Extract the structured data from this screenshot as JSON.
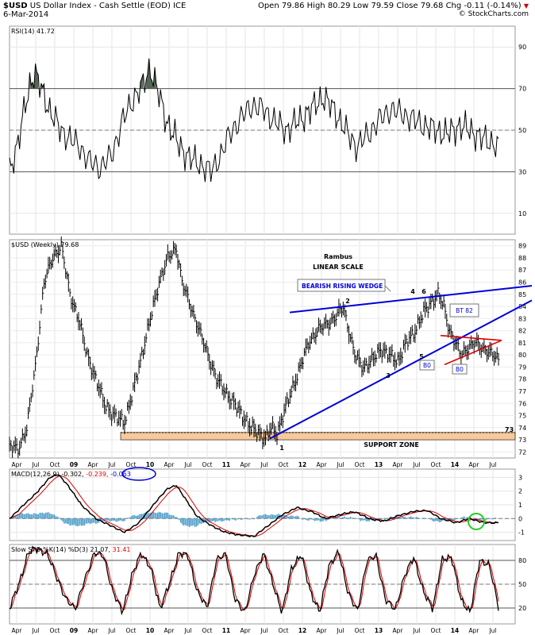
{
  "header": {
    "symbol": "$USD",
    "name": "US Dollar Index - Cash Settle (EOD)",
    "exchange": "ICE",
    "date": "6-Mar-2014",
    "open": "Open 79.86",
    "high": "High 80.29",
    "low": "Low 79.59",
    "close": "Close 79.68",
    "chg": "Chg -0.11 (-0.14%)",
    "copyright": "© StockCharts.com"
  },
  "x_axis_labels": [
    "Apr",
    "Jul",
    "Oct",
    "09",
    "Apr",
    "Jul",
    "Oct",
    "10",
    "Apr",
    "Jul",
    "Oct",
    "11",
    "Apr",
    "Jul",
    "Oct",
    "12",
    "Apr",
    "Jul",
    "Oct",
    "13",
    "Apr",
    "Jul",
    "Oct",
    "14",
    "Apr",
    "Jul"
  ],
  "colors": {
    "price": "#000000",
    "wedge": "#0000dd",
    "triangle": "#dd0000",
    "support_fill": "#f8c99a",
    "macd_signal": "#dd0000",
    "histogram": "#4a9cc8",
    "circle_green": "#22cc22",
    "circle_blue": "#0000cc",
    "rsi_extreme_fill": "#556655"
  },
  "chart_data": [
    {
      "type": "line",
      "panel": "rsi",
      "legend": "RSI(14) 41.72",
      "ylim": [
        0,
        100
      ],
      "yticks": [
        10,
        30,
        50,
        70,
        90
      ],
      "reference_lines": [
        30,
        50,
        70
      ],
      "keypoints": [
        [
          0,
          30
        ],
        [
          4,
          38
        ],
        [
          8,
          45
        ],
        [
          14,
          62
        ],
        [
          18,
          72
        ],
        [
          22,
          78
        ],
        [
          28,
          70
        ],
        [
          35,
          60
        ],
        [
          45,
          50
        ],
        [
          55,
          45
        ],
        [
          62,
          42
        ],
        [
          70,
          35
        ],
        [
          80,
          32
        ],
        [
          90,
          38
        ],
        [
          100,
          55
        ],
        [
          110,
          66
        ],
        [
          118,
          72
        ],
        [
          124,
          80
        ],
        [
          130,
          70
        ],
        [
          138,
          55
        ],
        [
          150,
          42
        ],
        [
          160,
          36
        ],
        [
          170,
          33
        ],
        [
          178,
          30
        ],
        [
          186,
          38
        ],
        [
          194,
          48
        ],
        [
          204,
          56
        ],
        [
          214,
          62
        ],
        [
          224,
          60
        ],
        [
          234,
          54
        ],
        [
          244,
          50
        ],
        [
          256,
          55
        ],
        [
          266,
          60
        ],
        [
          276,
          66
        ],
        [
          286,
          60
        ],
        [
          296,
          50
        ],
        [
          306,
          42
        ],
        [
          316,
          48
        ],
        [
          326,
          55
        ],
        [
          336,
          60
        ],
        [
          346,
          58
        ],
        [
          356,
          55
        ],
        [
          366,
          52
        ],
        [
          376,
          50
        ],
        [
          386,
          48
        ],
        [
          396,
          52
        ],
        [
          406,
          50
        ],
        [
          416,
          46
        ],
        [
          426,
          44
        ],
        [
          431,
          41.72
        ]
      ]
    },
    {
      "type": "line",
      "panel": "price",
      "legend": "$USD (Weekly) 79.68",
      "ylim": [
        71.5,
        89.5
      ],
      "yticks": [
        72,
        73,
        74,
        75,
        76,
        77,
        78,
        79,
        80,
        81,
        82,
        83,
        84,
        85,
        86,
        87,
        88,
        89
      ],
      "keypoints": [
        [
          0,
          72.5
        ],
        [
          6,
          72.2
        ],
        [
          12,
          74
        ],
        [
          18,
          79
        ],
        [
          24,
          86
        ],
        [
          30,
          88
        ],
        [
          36,
          89
        ],
        [
          42,
          85
        ],
        [
          48,
          83
        ],
        [
          54,
          80
        ],
        [
          60,
          78
        ],
        [
          66,
          76
        ],
        [
          72,
          75
        ],
        [
          80,
          74.5
        ],
        [
          86,
          77
        ],
        [
          92,
          80
        ],
        [
          98,
          83
        ],
        [
          104,
          86
        ],
        [
          110,
          88
        ],
        [
          116,
          88.8
        ],
        [
          120,
          86
        ],
        [
          126,
          84
        ],
        [
          132,
          82
        ],
        [
          138,
          80
        ],
        [
          144,
          78
        ],
        [
          150,
          77
        ],
        [
          156,
          76
        ],
        [
          162,
          75
        ],
        [
          168,
          74
        ],
        [
          174,
          73.5
        ],
        [
          178,
          73.1
        ],
        [
          182,
          74
        ],
        [
          186,
          73.5
        ],
        [
          190,
          75
        ],
        [
          196,
          77
        ],
        [
          202,
          79
        ],
        [
          208,
          81
        ],
        [
          214,
          82
        ],
        [
          220,
          82.5
        ],
        [
          226,
          83
        ],
        [
          232,
          84
        ],
        [
          236,
          82
        ],
        [
          240,
          80
        ],
        [
          246,
          79
        ],
        [
          252,
          79.5
        ],
        [
          258,
          80.5
        ],
        [
          264,
          80
        ],
        [
          270,
          79.5
        ],
        [
          276,
          81
        ],
        [
          282,
          82
        ],
        [
          288,
          83.5
        ],
        [
          294,
          84.5
        ],
        [
          298,
          85
        ],
        [
          302,
          84
        ],
        [
          306,
          82
        ],
        [
          310,
          81
        ],
        [
          314,
          80
        ],
        [
          318,
          80.5
        ],
        [
          324,
          81
        ],
        [
          330,
          80.5
        ],
        [
          336,
          80
        ],
        [
          340,
          79.68
        ]
      ],
      "annotations": [
        "Rambus",
        "LINEAR SCALE",
        "BEARISH RISING WEDGE",
        "SUPPORT ZONE",
        "BT 82",
        "B0",
        "B0",
        "1",
        "2",
        "3",
        "4",
        "5",
        "6",
        "73"
      ]
    },
    {
      "type": "line",
      "panel": "macd",
      "legend_prefix": "MACD(12,26,9)",
      "legend_values": [
        "-0.302,",
        "-0.239,",
        "-0.063"
      ],
      "yticks": [
        -1,
        0,
        1,
        2,
        3
      ],
      "ylim": [
        -1.6,
        3.6
      ],
      "keypoints": [
        [
          0,
          0
        ],
        [
          10,
          1
        ],
        [
          20,
          2
        ],
        [
          28,
          3
        ],
        [
          34,
          3.2
        ],
        [
          40,
          2.5
        ],
        [
          50,
          1
        ],
        [
          60,
          0
        ],
        [
          70,
          -0.5
        ],
        [
          80,
          -1
        ],
        [
          90,
          -0.3
        ],
        [
          100,
          1
        ],
        [
          110,
          2.2
        ],
        [
          116,
          2.4
        ],
        [
          122,
          1.5
        ],
        [
          130,
          0.2
        ],
        [
          140,
          -0.5
        ],
        [
          150,
          -1
        ],
        [
          160,
          -1.2
        ],
        [
          170,
          -1.3
        ],
        [
          180,
          -0.5
        ],
        [
          190,
          0.3
        ],
        [
          200,
          0.8
        ],
        [
          210,
          0.5
        ],
        [
          220,
          0
        ],
        [
          230,
          0.3
        ],
        [
          240,
          0.5
        ],
        [
          250,
          0
        ],
        [
          260,
          -0.2
        ],
        [
          270,
          0.2
        ],
        [
          280,
          0.5
        ],
        [
          290,
          0.6
        ],
        [
          300,
          0
        ],
        [
          310,
          -0.3
        ],
        [
          320,
          0
        ],
        [
          330,
          -0.3
        ],
        [
          340,
          -0.3
        ]
      ]
    },
    {
      "type": "line",
      "panel": "stochastic",
      "legend_prefix": "Slow STO %K(14) %D(3)",
      "legend_values": [
        "21.07,",
        "31.41"
      ],
      "yticks": [
        20,
        50,
        80
      ],
      "reference_lines": [
        20,
        50,
        80
      ],
      "ylim": [
        0,
        100
      ],
      "keypoints": [
        [
          0,
          20
        ],
        [
          6,
          50
        ],
        [
          12,
          90
        ],
        [
          18,
          95
        ],
        [
          24,
          88
        ],
        [
          30,
          60
        ],
        [
          36,
          30
        ],
        [
          42,
          20
        ],
        [
          48,
          55
        ],
        [
          54,
          90
        ],
        [
          60,
          85
        ],
        [
          66,
          40
        ],
        [
          72,
          15
        ],
        [
          78,
          60
        ],
        [
          84,
          90
        ],
        [
          90,
          70
        ],
        [
          96,
          20
        ],
        [
          102,
          50
        ],
        [
          108,
          90
        ],
        [
          114,
          85
        ],
        [
          120,
          40
        ],
        [
          126,
          20
        ],
        [
          132,
          80
        ],
        [
          138,
          88
        ],
        [
          144,
          30
        ],
        [
          150,
          15
        ],
        [
          156,
          60
        ],
        [
          162,
          90
        ],
        [
          168,
          50
        ],
        [
          174,
          15
        ],
        [
          180,
          70
        ],
        [
          186,
          88
        ],
        [
          192,
          40
        ],
        [
          198,
          15
        ],
        [
          204,
          75
        ],
        [
          210,
          90
        ],
        [
          216,
          40
        ],
        [
          222,
          15
        ],
        [
          228,
          80
        ],
        [
          234,
          85
        ],
        [
          240,
          30
        ],
        [
          246,
          18
        ],
        [
          252,
          60
        ],
        [
          258,
          85
        ],
        [
          264,
          40
        ],
        [
          270,
          20
        ],
        [
          276,
          80
        ],
        [
          282,
          85
        ],
        [
          288,
          30
        ],
        [
          294,
          15
        ],
        [
          300,
          80
        ],
        [
          306,
          75
        ],
        [
          312,
          21
        ]
      ]
    }
  ]
}
